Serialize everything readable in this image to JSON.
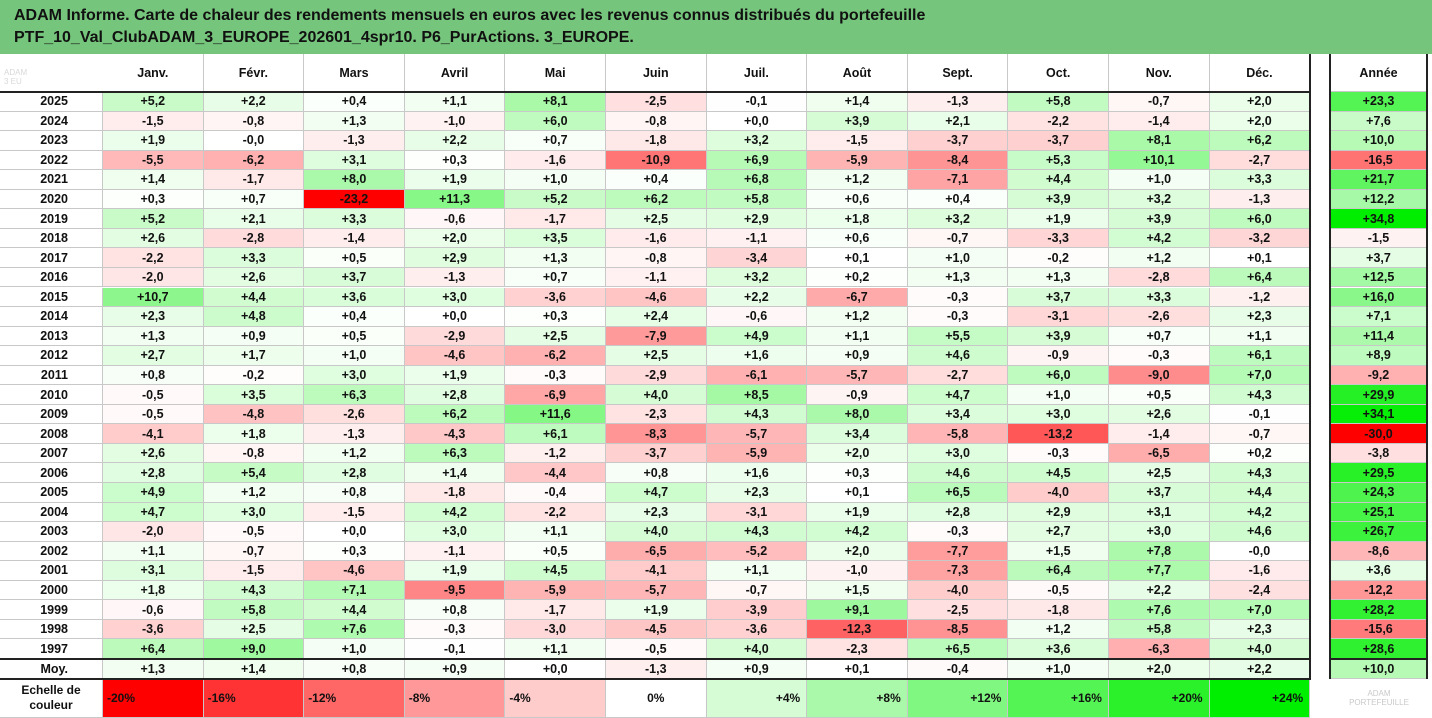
{
  "title": {
    "line1": "ADAM Informe. Carte de chaleur des rendements mensuels en euros avec les revenus connus distribués du portefeuille",
    "line2": "PTF_10_Val_ClubADAM_3_EUROPE_202601_4spr10. P6_PurActions. 3_EUROPE."
  },
  "corner_faint_text": "ADAM 3 EU",
  "watermark": [
    "ADAM",
    "PORTEFEUILLE"
  ],
  "colors": {
    "title_bg": "#76c57c",
    "strong_negative": "#ff0000",
    "strong_positive": "#00ee00",
    "neutral": "#ffffff"
  },
  "chart_data": {
    "type": "heatmap",
    "columns": [
      "Janv.",
      "Févr.",
      "Mars",
      "Avril",
      "Mai",
      "Juin",
      "Juil.",
      "Août",
      "Sept.",
      "Oct.",
      "Nov.",
      "Déc."
    ],
    "annual_label": "Année",
    "rows": [
      {
        "year": "2025",
        "values": [
          "+5,2",
          "+2,2",
          "+0,4",
          "+1,1",
          "+8,1",
          "-2,5",
          "-0,1",
          "+1,4",
          "-1,3",
          "+5,8",
          "-0,7",
          "+2,0"
        ],
        "annual": "+23,3"
      },
      {
        "year": "2024",
        "values": [
          "-1,5",
          "-0,8",
          "+1,3",
          "-1,0",
          "+6,0",
          "-0,8",
          "+0,0",
          "+3,9",
          "+2,1",
          "-2,2",
          "-1,4",
          "+2,0"
        ],
        "annual": "+7,6"
      },
      {
        "year": "2023",
        "values": [
          "+1,9",
          "-0,0",
          "-1,3",
          "+2,2",
          "+0,7",
          "-1,8",
          "+3,2",
          "-1,5",
          "-3,7",
          "-3,7",
          "+8,1",
          "+6,2"
        ],
        "annual": "+10,0"
      },
      {
        "year": "2022",
        "values": [
          "-5,5",
          "-6,2",
          "+3,1",
          "+0,3",
          "-1,6",
          "-10,9",
          "+6,9",
          "-5,9",
          "-8,4",
          "+5,3",
          "+10,1",
          "-2,7"
        ],
        "annual": "-16,5"
      },
      {
        "year": "2021",
        "values": [
          "+1,4",
          "-1,7",
          "+8,0",
          "+1,9",
          "+1,0",
          "+0,4",
          "+6,8",
          "+1,2",
          "-7,1",
          "+4,4",
          "+1,0",
          "+3,3"
        ],
        "annual": "+21,7"
      },
      {
        "year": "2020",
        "values": [
          "+0,3",
          "+0,7",
          "-23,2",
          "+11,3",
          "+5,2",
          "+6,2",
          "+5,8",
          "+0,6",
          "+0,4",
          "+3,9",
          "+3,2",
          "-1,3"
        ],
        "annual": "+12,2"
      },
      {
        "year": "2019",
        "values": [
          "+5,2",
          "+2,1",
          "+3,3",
          "-0,6",
          "-1,7",
          "+2,5",
          "+2,9",
          "+1,8",
          "+3,2",
          "+1,9",
          "+3,9",
          "+6,0"
        ],
        "annual": "+34,8"
      },
      {
        "year": "2018",
        "values": [
          "+2,6",
          "-2,8",
          "-1,4",
          "+2,0",
          "+3,5",
          "-1,6",
          "-1,1",
          "+0,6",
          "-0,7",
          "-3,3",
          "+4,2",
          "-3,2"
        ],
        "annual": "-1,5"
      },
      {
        "year": "2017",
        "values": [
          "-2,2",
          "+3,3",
          "+0,5",
          "+2,9",
          "+1,3",
          "-0,8",
          "-3,4",
          "+0,1",
          "+1,0",
          "-0,2",
          "+1,2",
          "+0,1"
        ],
        "annual": "+3,7"
      },
      {
        "year": "2016",
        "values": [
          "-2,0",
          "+2,6",
          "+3,7",
          "-1,3",
          "+0,7",
          "-1,1",
          "+3,2",
          "+0,2",
          "+1,3",
          "+1,3",
          "-2,8",
          "+6,4"
        ],
        "annual": "+12,5"
      },
      {
        "year": "2015",
        "values": [
          "+10,7",
          "+4,4",
          "+3,6",
          "+3,0",
          "-3,6",
          "-4,6",
          "+2,2",
          "-6,7",
          "-0,3",
          "+3,7",
          "+3,3",
          "-1,2"
        ],
        "annual": "+16,0"
      },
      {
        "year": "2014",
        "values": [
          "+2,3",
          "+4,8",
          "+0,4",
          "+0,0",
          "+0,3",
          "+2,4",
          "-0,6",
          "+1,2",
          "-0,3",
          "-3,1",
          "-2,6",
          "+2,3"
        ],
        "annual": "+7,1"
      },
      {
        "year": "2013",
        "values": [
          "+1,3",
          "+0,9",
          "+0,5",
          "-2,9",
          "+2,5",
          "-7,9",
          "+4,9",
          "+1,1",
          "+5,5",
          "+3,9",
          "+0,7",
          "+1,1"
        ],
        "annual": "+11,4"
      },
      {
        "year": "2012",
        "values": [
          "+2,7",
          "+1,7",
          "+1,0",
          "-4,6",
          "-6,2",
          "+2,5",
          "+1,6",
          "+0,9",
          "+4,6",
          "-0,9",
          "-0,3",
          "+6,1"
        ],
        "annual": "+8,9"
      },
      {
        "year": "2011",
        "values": [
          "+0,8",
          "-0,2",
          "+3,0",
          "+1,9",
          "-0,3",
          "-2,9",
          "-6,1",
          "-5,7",
          "-2,7",
          "+6,0",
          "-9,0",
          "+7,0"
        ],
        "annual": "-9,2"
      },
      {
        "year": "2010",
        "values": [
          "-0,5",
          "+3,5",
          "+6,3",
          "+2,8",
          "-6,9",
          "+4,0",
          "+8,5",
          "-0,9",
          "+4,7",
          "+1,0",
          "+0,5",
          "+4,3"
        ],
        "annual": "+29,9"
      },
      {
        "year": "2009",
        "values": [
          "-0,5",
          "-4,8",
          "-2,6",
          "+6,2",
          "+11,6",
          "-2,3",
          "+4,3",
          "+8,0",
          "+3,4",
          "+3,0",
          "+2,6",
          "-0,1"
        ],
        "annual": "+34,1"
      },
      {
        "year": "2008",
        "values": [
          "-4,1",
          "+1,8",
          "-1,3",
          "-4,3",
          "+6,1",
          "-8,3",
          "-5,7",
          "+3,4",
          "-5,8",
          "-13,2",
          "-1,4",
          "-0,7"
        ],
        "annual": "-30,0"
      },
      {
        "year": "2007",
        "values": [
          "+2,6",
          "-0,8",
          "+1,2",
          "+6,3",
          "-1,2",
          "-3,7",
          "-5,9",
          "+2,0",
          "+3,0",
          "-0,3",
          "-6,5",
          "+0,2"
        ],
        "annual": "-3,8"
      },
      {
        "year": "2006",
        "values": [
          "+2,8",
          "+5,4",
          "+2,8",
          "+1,4",
          "-4,4",
          "+0,8",
          "+1,6",
          "+0,3",
          "+4,6",
          "+4,5",
          "+2,5",
          "+4,3"
        ],
        "annual": "+29,5"
      },
      {
        "year": "2005",
        "values": [
          "+4,9",
          "+1,2",
          "+0,8",
          "-1,8",
          "-0,4",
          "+4,7",
          "+2,3",
          "+0,1",
          "+6,5",
          "-4,0",
          "+3,7",
          "+4,4"
        ],
        "annual": "+24,3"
      },
      {
        "year": "2004",
        "values": [
          "+4,7",
          "+3,0",
          "-1,5",
          "+4,2",
          "-2,2",
          "+2,3",
          "-3,1",
          "+1,9",
          "+2,8",
          "+2,9",
          "+3,1",
          "+4,2"
        ],
        "annual": "+25,1"
      },
      {
        "year": "2003",
        "values": [
          "-2,0",
          "-0,5",
          "+0,0",
          "+3,0",
          "+1,1",
          "+4,0",
          "+4,3",
          "+4,2",
          "-0,3",
          "+2,7",
          "+3,0",
          "+4,6"
        ],
        "annual": "+26,7"
      },
      {
        "year": "2002",
        "values": [
          "+1,1",
          "-0,7",
          "+0,3",
          "-1,1",
          "+0,5",
          "-6,5",
          "-5,2",
          "+2,0",
          "-7,7",
          "+1,5",
          "+7,8",
          "-0,0"
        ],
        "annual": "-8,6"
      },
      {
        "year": "2001",
        "values": [
          "+3,1",
          "-1,5",
          "-4,6",
          "+1,9",
          "+4,5",
          "-4,1",
          "+1,1",
          "-1,0",
          "-7,3",
          "+6,4",
          "+7,7",
          "-1,6"
        ],
        "annual": "+3,6"
      },
      {
        "year": "2000",
        "values": [
          "+1,8",
          "+4,3",
          "+7,1",
          "-9,5",
          "-5,9",
          "-5,7",
          "-0,7",
          "+1,5",
          "-4,0",
          "-0,5",
          "+2,2",
          "-2,4"
        ],
        "annual": "-12,2"
      },
      {
        "year": "1999",
        "values": [
          "-0,6",
          "+5,8",
          "+4,4",
          "+0,8",
          "-1,7",
          "+1,9",
          "-3,9",
          "+9,1",
          "-2,5",
          "-1,8",
          "+7,6",
          "+7,0"
        ],
        "annual": "+28,2"
      },
      {
        "year": "1998",
        "values": [
          "-3,6",
          "+2,5",
          "+7,6",
          "-0,3",
          "-3,0",
          "-4,5",
          "-3,6",
          "-12,3",
          "-8,5",
          "+1,2",
          "+5,8",
          "+2,3"
        ],
        "annual": "-15,6"
      },
      {
        "year": "1997",
        "values": [
          "+6,4",
          "+9,0",
          "+1,0",
          "-0,1",
          "+1,1",
          "-0,5",
          "+4,0",
          "-2,3",
          "+6,5",
          "+3,6",
          "-6,3",
          "+4,0"
        ],
        "annual": "+28,6"
      }
    ],
    "average": {
      "label": "Moy.",
      "values": [
        "+1,3",
        "+1,4",
        "+0,8",
        "+0,9",
        "+0,0",
        "-1,3",
        "+0,9",
        "+0,1",
        "-0,4",
        "+1,0",
        "+2,0",
        "+2,2"
      ],
      "annual": "+10,0"
    },
    "color_scale": {
      "label": "Echelle de couleur",
      "stops": [
        "-20%",
        "-16%",
        "-12%",
        "-8%",
        "-4%",
        "0%",
        "+4%",
        "+8%",
        "+12%",
        "+16%",
        "+20%",
        "+24%"
      ],
      "values": [
        -20,
        -16,
        -12,
        -8,
        -4,
        0,
        4,
        8,
        12,
        16,
        20,
        24
      ]
    },
    "monthly_saturation": {
      "negative_full": -20,
      "positive_full": 24
    },
    "annual_saturation": {
      "negative_full": -30,
      "positive_full": 35
    }
  }
}
